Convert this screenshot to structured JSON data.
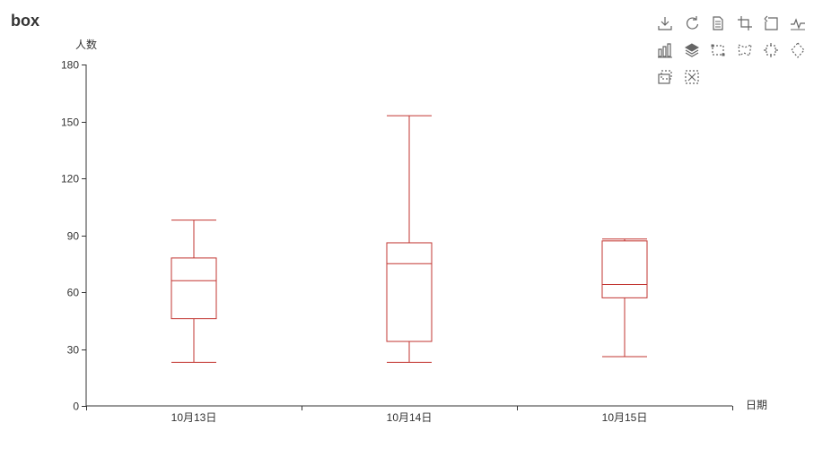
{
  "title": "box",
  "colors": {
    "box": "#c23531",
    "axis": "#333333",
    "label": "#333333",
    "icon": "#666666"
  },
  "toolbox": [
    {
      "name": "save-image-icon"
    },
    {
      "name": "restore-icon"
    },
    {
      "name": "data-view-icon"
    },
    {
      "name": "zoom-icon"
    },
    {
      "name": "zoom-back-icon"
    },
    {
      "name": "line-chart-icon"
    },
    {
      "name": "bar-chart-icon"
    },
    {
      "name": "stack-icon"
    },
    {
      "name": "rect-select-icon"
    },
    {
      "name": "polygon-select-icon"
    },
    {
      "name": "keep-select-icon"
    },
    {
      "name": "clear-select-icon"
    },
    {
      "name": "brush-keep-icon"
    },
    {
      "name": "brush-clear-icon"
    }
  ],
  "chart_data": {
    "type": "boxplot",
    "categories": [
      "10月13日",
      "10月14日",
      "10月15日"
    ],
    "series": [
      {
        "values": [
          {
            "min": 23,
            "q1": 46,
            "median": 66,
            "q3": 78,
            "max": 98
          },
          {
            "min": 23,
            "q1": 34,
            "median": 75,
            "q3": 86,
            "max": 153
          },
          {
            "min": 26,
            "q1": 57,
            "median": 64,
            "q3": 87,
            "max": 88
          }
        ]
      }
    ],
    "xlabel": "日期",
    "ylabel": "人数",
    "ylim": [
      0,
      180
    ],
    "yticks": [
      0,
      30,
      60,
      90,
      120,
      150,
      180
    ],
    "grid": false,
    "legend": "none"
  }
}
